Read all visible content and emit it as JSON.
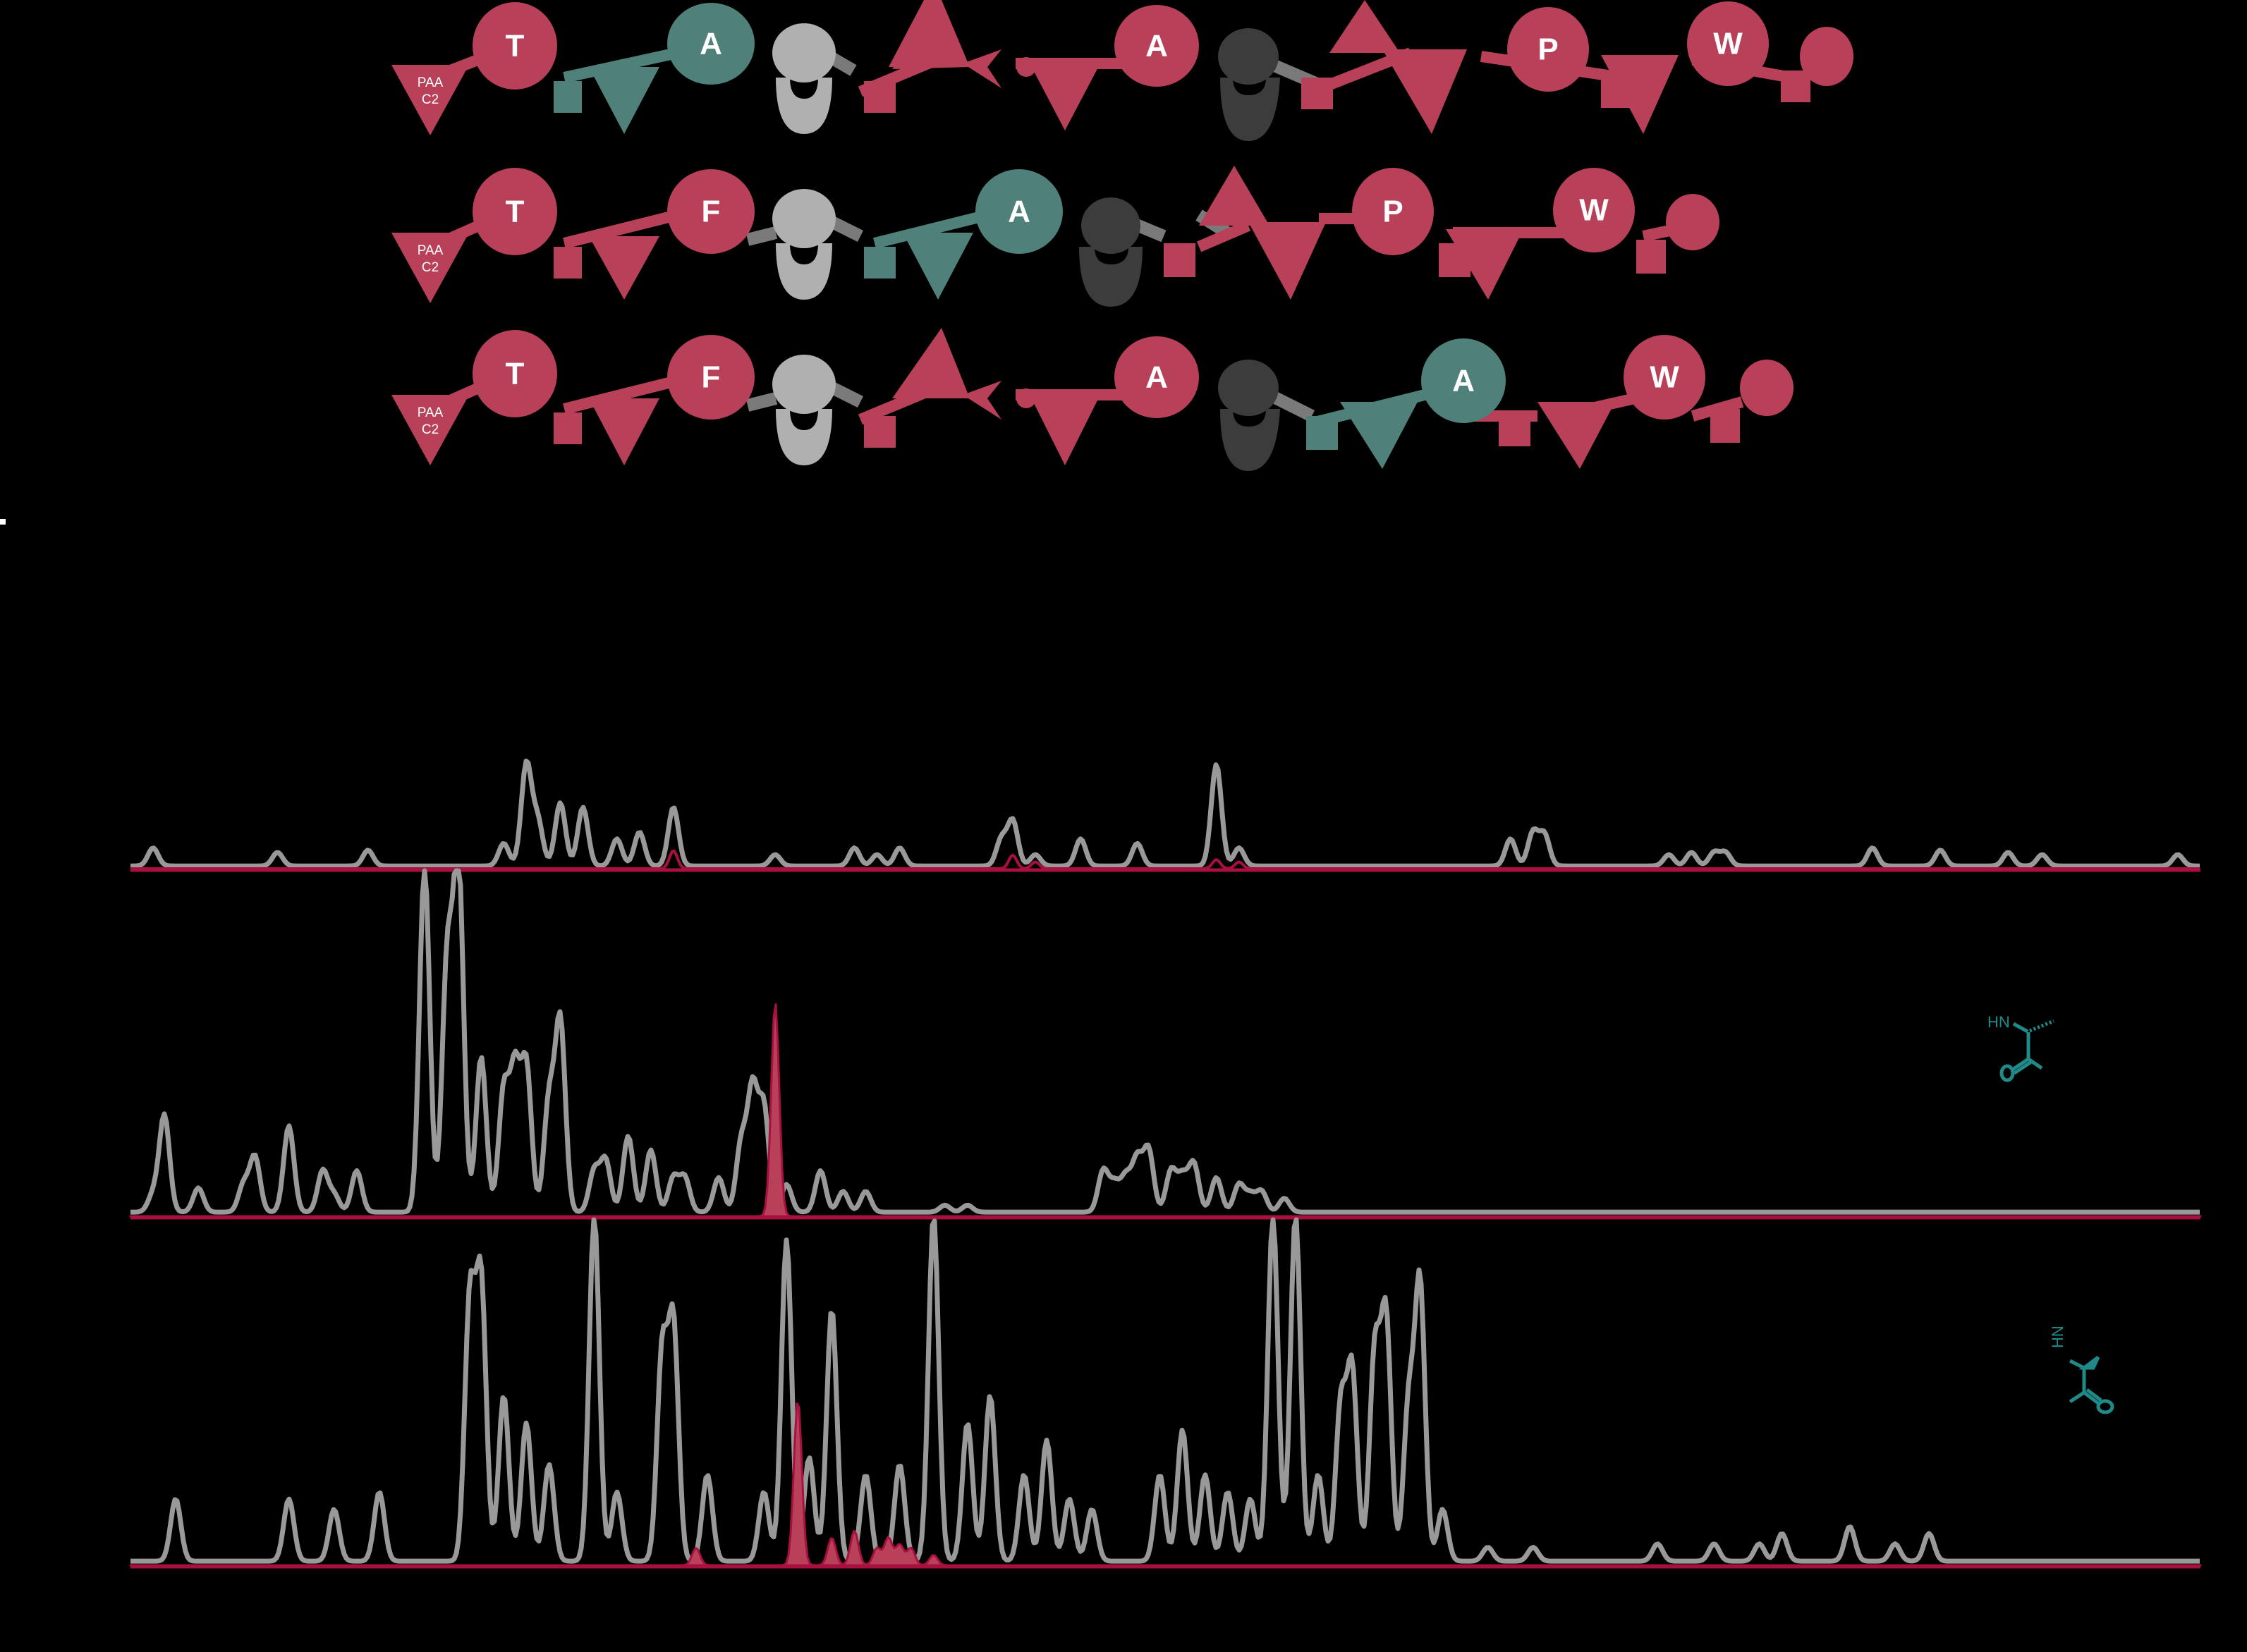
{
  "figure": {
    "background": "#000000",
    "colors": {
      "crimson": "#b84058",
      "crimson_line": "#a8103f",
      "teal": "#4f8079",
      "teal_structure": "#1f8a88",
      "light_gray": "#b0b0b0",
      "dark_gray": "#3c3c3c",
      "linker_gray": "#7a7a7a",
      "trace_gray": "#999999",
      "label_white": "#ffffff"
    },
    "left_marker": "-"
  },
  "glycans": [
    {
      "name": "glycan-row-1",
      "linker_label_line1": "PAA",
      "linker_label_line2": "C2",
      "residue_labels": [
        "T",
        "A",
        "A",
        "P",
        "W"
      ],
      "residue_colors": [
        "crimson",
        "teal",
        "crimson",
        "crimson",
        "crimson"
      ]
    },
    {
      "name": "glycan-row-2",
      "linker_label_line1": "PAA",
      "linker_label_line2": "C2",
      "residue_labels": [
        "T",
        "F",
        "A",
        "P",
        "W"
      ],
      "residue_colors": [
        "crimson",
        "crimson",
        "teal",
        "crimson",
        "crimson"
      ]
    },
    {
      "name": "glycan-row-3",
      "linker_label_line1": "PAA",
      "linker_label_line2": "C2",
      "residue_labels": [
        "T",
        "F",
        "A",
        "A",
        "W"
      ],
      "residue_colors": [
        "crimson",
        "crimson",
        "crimson",
        "teal",
        "crimson"
      ]
    }
  ],
  "insets": {
    "middle": {
      "nh_label": "HN",
      "o_label": "O"
    },
    "bottom": {
      "nh_label": "HN",
      "o_label": "O"
    }
  },
  "chart_data": [
    {
      "type": "area",
      "title": "",
      "xlabel": "",
      "ylabel": "",
      "grid": false,
      "legend": "none",
      "xlim": [
        0,
        100
      ],
      "ylim": [
        0,
        100
      ],
      "series": [
        {
          "name": "total-trace",
          "color": "#999999",
          "peaks": [
            [
              2,
              8
            ],
            [
              13,
              6
            ],
            [
              21,
              7
            ],
            [
              35,
              45
            ],
            [
              33,
              10
            ],
            [
              36,
              20
            ],
            [
              38,
              28
            ],
            [
              40,
              26
            ],
            [
              43,
              12
            ],
            [
              45,
              15
            ],
            [
              48,
              26
            ],
            [
              57,
              5
            ],
            [
              64,
              8
            ],
            [
              66,
              5
            ],
            [
              68,
              8
            ],
            [
              77,
              12
            ],
            [
              78,
              20
            ],
            [
              80,
              5
            ],
            [
              84,
              12
            ],
            [
              89,
              10
            ],
            [
              96,
              45
            ],
            [
              98,
              8
            ],
            [
              122,
              12
            ],
            [
              124,
              15
            ],
            [
              125,
              14
            ],
            [
              136,
              5
            ],
            [
              138,
              6
            ],
            [
              140,
              6
            ],
            [
              141,
              6
            ],
            [
              154,
              8
            ],
            [
              160,
              7
            ],
            [
              166,
              6
            ],
            [
              169,
              5
            ],
            [
              181,
              5
            ]
          ]
        },
        {
          "name": "highlight-trace",
          "color": "#a8103f",
          "peaks": [
            [
              48,
              8
            ],
            [
              78,
              6
            ],
            [
              80,
              3
            ],
            [
              96,
              4
            ],
            [
              98,
              3
            ]
          ]
        }
      ]
    },
    {
      "type": "area",
      "title": "",
      "xlabel": "",
      "ylabel": "",
      "grid": false,
      "legend": "none",
      "xlim": [
        0,
        100
      ],
      "ylim": [
        0,
        100
      ],
      "series": [
        {
          "name": "total-trace",
          "color": "#999999",
          "peaks": [
            [
              2,
              5
            ],
            [
              3,
              28
            ],
            [
              6,
              7
            ],
            [
              10,
              8
            ],
            [
              11,
              16
            ],
            [
              14,
              25
            ],
            [
              17,
              12
            ],
            [
              18,
              5
            ],
            [
              20,
              12
            ],
            [
              26,
              100
            ],
            [
              28,
              72
            ],
            [
              29,
              100
            ],
            [
              31,
              45
            ],
            [
              33,
              35
            ],
            [
              34,
              40
            ],
            [
              35,
              42
            ],
            [
              37,
              32
            ],
            [
              38,
              55
            ],
            [
              41,
              12
            ],
            [
              42,
              15
            ],
            [
              44,
              22
            ],
            [
              46,
              18
            ],
            [
              48,
              10
            ],
            [
              49,
              10
            ],
            [
              52,
              10
            ],
            [
              54,
              20
            ],
            [
              55,
              35
            ],
            [
              56,
              30
            ],
            [
              58,
              8
            ],
            [
              61,
              12
            ],
            [
              63,
              6
            ],
            [
              65,
              6
            ],
            [
              72,
              2
            ],
            [
              74,
              2
            ],
            [
              86,
              12
            ],
            [
              87,
              8
            ],
            [
              88,
              10
            ],
            [
              89,
              15
            ],
            [
              90,
              18
            ],
            [
              92,
              12
            ],
            [
              93,
              10
            ],
            [
              94,
              14
            ],
            [
              96,
              10
            ],
            [
              98,
              8
            ],
            [
              99,
              5
            ],
            [
              100,
              6
            ],
            [
              102,
              4
            ]
          ]
        },
        {
          "name": "highlight-trace",
          "color": "#b84058",
          "filled": true,
          "peaks": [
            [
              57,
              62
            ]
          ]
        }
      ]
    },
    {
      "type": "area",
      "title": "",
      "xlabel": "",
      "ylabel": "",
      "grid": false,
      "legend": "none",
      "xlim": [
        0,
        100
      ],
      "ylim": [
        0,
        100
      ],
      "series": [
        {
          "name": "total-trace",
          "color": "#999999",
          "peaks": [
            [
              4,
              18
            ],
            [
              14,
              18
            ],
            [
              18,
              15
            ],
            [
              22,
              20
            ],
            [
              30,
              75
            ],
            [
              31,
              80
            ],
            [
              33,
              48
            ],
            [
              35,
              40
            ],
            [
              37,
              28
            ],
            [
              41,
              100
            ],
            [
              43,
              20
            ],
            [
              47,
              60
            ],
            [
              48,
              68
            ],
            [
              51,
              25
            ],
            [
              56,
              20
            ],
            [
              58,
              93
            ],
            [
              60,
              30
            ],
            [
              62,
              73
            ],
            [
              65,
              25
            ],
            [
              68,
              28
            ],
            [
              71,
              100
            ],
            [
              74,
              40
            ],
            [
              76,
              48
            ],
            [
              79,
              25
            ],
            [
              81,
              35
            ],
            [
              83,
              18
            ],
            [
              85,
              15
            ],
            [
              91,
              25
            ],
            [
              93,
              38
            ],
            [
              95,
              25
            ],
            [
              97,
              20
            ],
            [
              99,
              18
            ],
            [
              101,
              100
            ],
            [
              103,
              100
            ],
            [
              105,
              25
            ],
            [
              107,
              45
            ],
            [
              108,
              55
            ],
            [
              110,
              60
            ],
            [
              111,
              70
            ],
            [
              113,
              45
            ],
            [
              114,
              80
            ],
            [
              116,
              15
            ],
            [
              120,
              4
            ],
            [
              124,
              4
            ],
            [
              135,
              5
            ],
            [
              140,
              5
            ],
            [
              144,
              5
            ],
            [
              146,
              8
            ],
            [
              152,
              10
            ],
            [
              156,
              5
            ],
            [
              159,
              8
            ]
          ]
        },
        {
          "name": "highlight-trace",
          "color": "#b84058",
          "filled": true,
          "peaks": [
            [
              50,
              5
            ],
            [
              59,
              48
            ],
            [
              62,
              8
            ],
            [
              64,
              10
            ],
            [
              66,
              5
            ],
            [
              67,
              8
            ],
            [
              68,
              6
            ],
            [
              69,
              5
            ],
            [
              71,
              3
            ]
          ]
        }
      ]
    }
  ]
}
